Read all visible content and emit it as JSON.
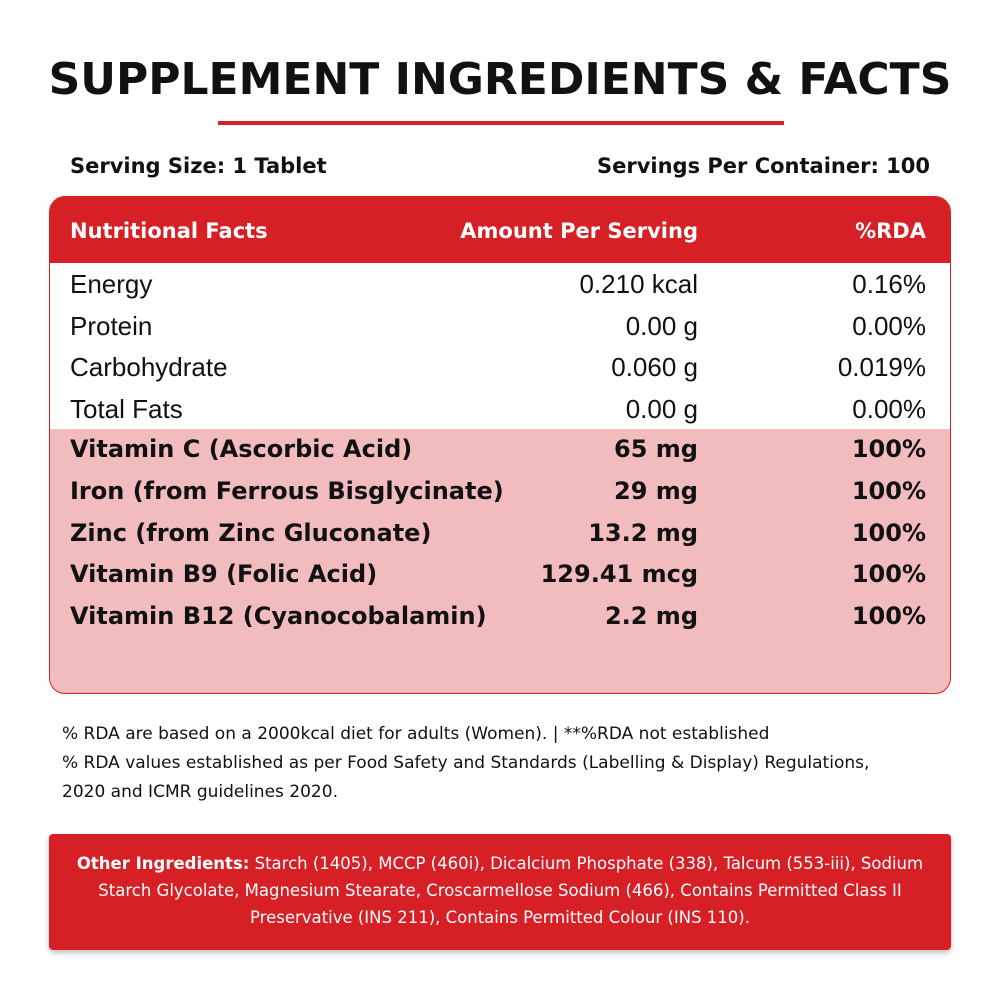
{
  "title": "SUPPLEMENT INGREDIENTS & FACTS",
  "serving_size": "Serving Size: 1 Tablet",
  "servings_per_container": "Servings Per Container: 100",
  "table": {
    "headers": {
      "name": "Nutritional Facts",
      "amount": "Amount Per Serving",
      "rda": "%RDA"
    },
    "basic_rows": [
      {
        "name": "Energy",
        "amount": "0.210 kcal",
        "rda": "0.16%"
      },
      {
        "name": "Protein",
        "amount": "0.00 g",
        "rda": "0.00%"
      },
      {
        "name": "Carbohydrate",
        "amount": "0.060 g",
        "rda": "0.019%"
      },
      {
        "name": "Total Fats",
        "amount": "0.00 g",
        "rda": "0.00%"
      }
    ],
    "vitamin_rows": [
      {
        "name": "Vitamin C (Ascorbic Acid)",
        "amount": "65 mg",
        "rda": "100%"
      },
      {
        "name": "Iron (from Ferrous Bisglycinate)",
        "amount": "29 mg",
        "rda": "100%"
      },
      {
        "name": "Zinc (from Zinc Gluconate)",
        "amount": "13.2 mg",
        "rda": "100%"
      },
      {
        "name": "Vitamin B9 (Folic Acid)",
        "amount": "129.41 mcg",
        "rda": "100%"
      },
      {
        "name": "Vitamin B12 (Cyanocobalamin)",
        "amount": "2.2 mg",
        "rda": "100%"
      }
    ]
  },
  "footnotes": [
    "% RDA are based on a 2000kcal diet for adults (Women). | **%RDA not established",
    "% RDA values established as per Food Safety and Standards (Labelling & Display) Regulations,",
    "2020 and ICMR guidelines 2020."
  ],
  "other_ingredients": {
    "label": "Other Ingredients:",
    "text": " Starch (1405), MCCP (460i), Dicalcium Phosphate (338), Talcum (553-iii), Sodium Starch Glycolate, Magnesium Stearate, Croscarmellose Sodium (466), Contains Permitted Class II Preservative (INS 211), Contains Permitted Colour (INS 110)."
  },
  "colors": {
    "accent_red": "#d71f26",
    "highlight_pink": "#f2bcbe"
  }
}
